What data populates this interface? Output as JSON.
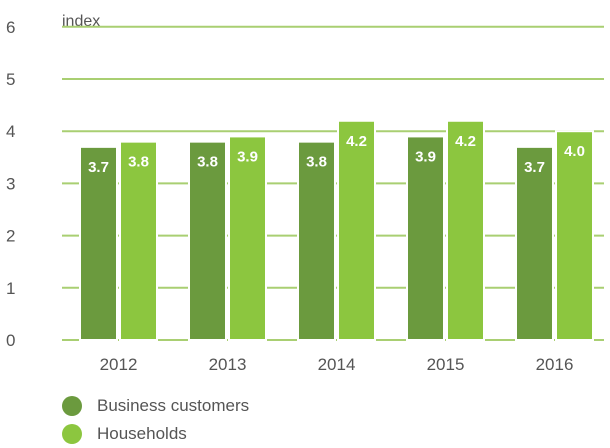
{
  "chart_data": {
    "type": "bar",
    "unit_label": "index",
    "categories": [
      "2012",
      "2013",
      "2014",
      "2015",
      "2016"
    ],
    "series": [
      {
        "name": "Business customers",
        "color": "#6b9a3e",
        "values": [
          3.7,
          3.8,
          3.8,
          3.9,
          3.7
        ],
        "labels": [
          "3.7",
          "3.8",
          "3.8",
          "3.9",
          "3.7"
        ]
      },
      {
        "name": "Households",
        "color": "#8cc63f",
        "values": [
          3.8,
          3.9,
          4.2,
          4.2,
          4.0
        ],
        "labels": [
          "3.8",
          "3.9",
          "4.2",
          "4.2",
          "4.0"
        ]
      }
    ],
    "yticks": [
      "0",
      "1",
      "2",
      "3",
      "4",
      "5",
      "6"
    ],
    "ylim": [
      0,
      6
    ],
    "grid": true,
    "gridline_color": "#a9cf72",
    "legend_position": "bottom-left"
  }
}
